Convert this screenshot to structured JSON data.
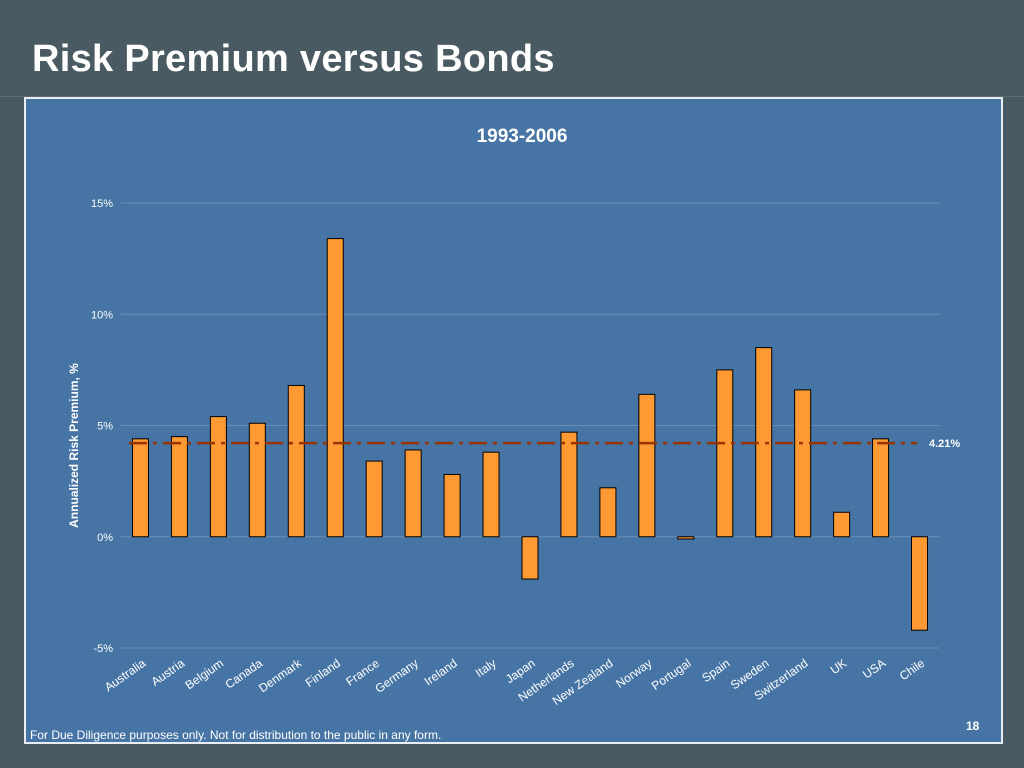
{
  "slide": {
    "title": "Risk Premium versus Bonds",
    "footer": "For Due Diligence purposes only. Not for distribution to the public in any form.",
    "page_number": "18"
  },
  "colors": {
    "background": "#4a5a63",
    "panel": "#4674a4",
    "bar_fill": "#ff9933",
    "bar_stroke": "#000000",
    "reference_line": "#993300",
    "gridline": "#6b8fb8"
  },
  "chart_data": {
    "type": "bar",
    "title": "1993-2006",
    "xlabel": "",
    "ylabel": "Annualized Risk Premium, %",
    "ylim": [
      -5,
      15
    ],
    "yticks": [
      15,
      10,
      5,
      0,
      -5
    ],
    "ytick_labels": [
      "15%",
      "10%",
      "5%",
      "0%",
      "-5%"
    ],
    "grid": true,
    "categories": [
      "Australia",
      "Austria",
      "Belgium",
      "Canada",
      "Denmark",
      "Finland",
      "France",
      "Germany",
      "Ireland",
      "Italy",
      "Japan",
      "Netherlands",
      "New Zealand",
      "Norway",
      "Portugal",
      "Spain",
      "Sweden",
      "Switzerland",
      "UK",
      "USA",
      "Chile"
    ],
    "values": [
      4.4,
      4.5,
      5.4,
      5.1,
      6.8,
      13.4,
      3.4,
      3.9,
      2.8,
      3.8,
      -1.9,
      4.7,
      2.2,
      6.4,
      -0.1,
      7.5,
      8.5,
      6.6,
      1.1,
      4.4,
      -4.2
    ],
    "reference_line": {
      "value": 4.21,
      "label": "4.21%"
    }
  }
}
